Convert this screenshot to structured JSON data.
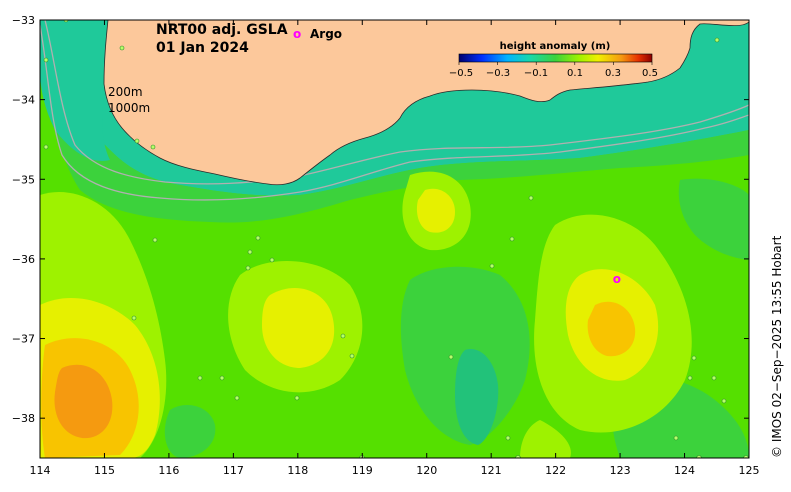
{
  "title": {
    "product": "NRT00 adj. GSLA",
    "date": "01 Jan 2024"
  },
  "legend": {
    "argo_marker": "o",
    "argo_label": "Argo",
    "colorbar_title": "height anomaly (m)",
    "colorbar_range": [
      -0.5,
      0.5
    ],
    "colorbar_ticks": [
      "−0.5",
      "−0.3",
      "−0.1",
      "0.1",
      "0.3",
      "0.5"
    ]
  },
  "contour_labels": {
    "shallow": "200m",
    "deep": "1000m"
  },
  "axes": {
    "x_ticks": [
      "114",
      "115",
      "116",
      "117",
      "118",
      "119",
      "120",
      "121",
      "122",
      "123",
      "124",
      "125"
    ],
    "y_ticks": [
      "−33",
      "−34",
      "−35",
      "−36",
      "−37",
      "−38"
    ],
    "lon_range": [
      114,
      125
    ],
    "lat_range": [
      -38.5,
      -33
    ]
  },
  "argo_floats": [
    {
      "lon": 122.95,
      "lat": -36.25
    }
  ],
  "credit": "© IMOS 02−Sep−2025 13:55 Hobart",
  "colors": {
    "land": "#fcc89b",
    "shelf_low": "#1fc99a",
    "mid": "#3cd23c",
    "green": "#55e000",
    "lime": "#9ef200",
    "yellow": "#e6f000",
    "amber": "#f8c400",
    "orange": "#f59a10",
    "teal": "#22c27a",
    "argo": "#ff00ff"
  }
}
